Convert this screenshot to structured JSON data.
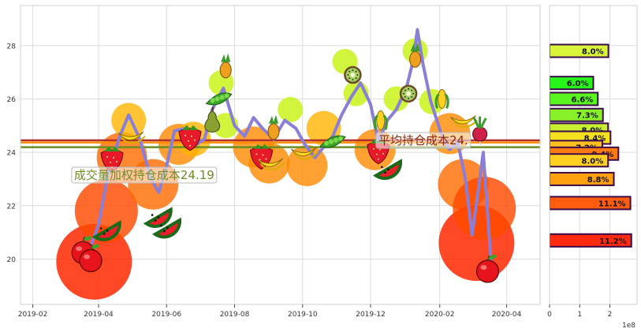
{
  "chart_data": [
    {
      "type": "line",
      "title": "",
      "xlabel": "",
      "ylabel": "",
      "xlim": [
        "2019-01-21",
        "2020-05-01"
      ],
      "ylim": [
        18.3,
        29.5
      ],
      "x_ticks": [
        "2019-02",
        "2019-04",
        "2019-06",
        "2019-08",
        "2019-10",
        "2019-12",
        "2020-02",
        "2020-04"
      ],
      "y_ticks": [
        20,
        22,
        24,
        26,
        28
      ],
      "grid": true,
      "series": [
        {
          "type": "line",
          "color": "#8a7fd6",
          "points": [
            [
              "2019-03-20",
              19.9
            ],
            [
              "2019-04-01",
              21.3
            ],
            [
              "2019-04-10",
              23.3
            ],
            [
              "2019-04-20",
              24.6
            ],
            [
              "2019-04-28",
              25.4
            ],
            [
              "2019-05-08",
              24.5
            ],
            [
              "2019-05-18",
              23.0
            ],
            [
              "2019-05-25",
              22.5
            ],
            [
              "2019-06-01",
              23.5
            ],
            [
              "2019-06-08",
              24.8
            ],
            [
              "2019-06-18",
              24.9
            ],
            [
              "2019-06-28",
              24.3
            ],
            [
              "2019-07-05",
              24.5
            ],
            [
              "2019-07-12",
              25.6
            ],
            [
              "2019-07-22",
              26.4
            ],
            [
              "2019-08-01",
              25.0
            ],
            [
              "2019-08-10",
              24.6
            ],
            [
              "2019-08-18",
              25.3
            ],
            [
              "2019-08-26",
              24.9
            ],
            [
              "2019-09-05",
              24.5
            ],
            [
              "2019-09-15",
              25.2
            ],
            [
              "2019-09-25",
              24.9
            ],
            [
              "2019-10-03",
              24.3
            ],
            [
              "2019-10-12",
              23.8
            ],
            [
              "2019-10-20",
              24.2
            ],
            [
              "2019-10-28",
              24.6
            ],
            [
              "2019-11-05",
              25.4
            ],
            [
              "2019-11-14",
              26.1
            ],
            [
              "2019-11-22",
              26.6
            ],
            [
              "2019-12-01",
              25.8
            ],
            [
              "2019-12-08",
              24.4
            ],
            [
              "2019-12-16",
              25.2
            ],
            [
              "2019-12-24",
              25.6
            ],
            [
              "2020-01-02",
              26.4
            ],
            [
              "2020-01-08",
              27.4
            ],
            [
              "2020-01-12",
              28.6
            ],
            [
              "2020-01-17",
              27.3
            ],
            [
              "2020-01-24",
              25.9
            ],
            [
              "2020-02-03",
              24.6
            ],
            [
              "2020-02-10",
              24.1
            ],
            [
              "2020-02-17",
              24.4
            ],
            [
              "2020-02-24",
              23.0
            ],
            [
              "2020-03-01",
              20.9
            ],
            [
              "2020-03-06",
              22.4
            ],
            [
              "2020-03-11",
              24.0
            ],
            [
              "2020-03-18",
              19.9
            ]
          ]
        }
      ],
      "horizontal_lines": [
        {
          "y": 24.45,
          "color": "#b03030"
        },
        {
          "y": 24.37,
          "color": "#ff8c00"
        },
        {
          "y": 24.19,
          "color": "#6b8e23"
        }
      ],
      "annotations": [
        {
          "text": "平均持仓成本24.",
          "x": "2019-12-08",
          "y": 24.3,
          "color": "#8b2a0a"
        },
        {
          "text": "成交量加权持仓成本24.19",
          "x": "2019-03-10",
          "y": 23.0,
          "color": "#6b8e23"
        }
      ],
      "bubbles": [
        {
          "x": "2019-03-28",
          "y": 19.9,
          "level": 5
        },
        {
          "x": "2019-04-08",
          "y": 21.8,
          "level": 4
        },
        {
          "x": "2019-04-22",
          "y": 23.8,
          "level": 3
        },
        {
          "x": "2019-04-28",
          "y": 25.2,
          "level": 1
        },
        {
          "x": "2019-05-20",
          "y": 22.8,
          "level": 3
        },
        {
          "x": "2019-06-12",
          "y": 24.3,
          "level": 2
        },
        {
          "x": "2019-06-25",
          "y": 24.5,
          "level": 1
        },
        {
          "x": "2019-07-20",
          "y": 26.6,
          "level": 0
        },
        {
          "x": "2019-07-24",
          "y": 25.0,
          "level": 0
        },
        {
          "x": "2019-08-18",
          "y": 24.2,
          "level": 2
        },
        {
          "x": "2019-09-01",
          "y": 23.6,
          "level": 2
        },
        {
          "x": "2019-09-20",
          "y": 25.6,
          "level": 0
        },
        {
          "x": "2019-10-05",
          "y": 23.5,
          "level": 2
        },
        {
          "x": "2019-10-20",
          "y": 24.9,
          "level": 1
        },
        {
          "x": "2019-11-08",
          "y": 27.4,
          "level": 0
        },
        {
          "x": "2019-11-18",
          "y": 26.2,
          "level": 0
        },
        {
          "x": "2019-12-05",
          "y": 24.1,
          "level": 2
        },
        {
          "x": "2019-12-24",
          "y": 26.0,
          "level": 0
        },
        {
          "x": "2020-01-10",
          "y": 27.8,
          "level": 0
        },
        {
          "x": "2020-01-25",
          "y": 25.9,
          "level": 0
        },
        {
          "x": "2020-02-10",
          "y": 24.7,
          "level": 2
        },
        {
          "x": "2020-02-22",
          "y": 22.8,
          "level": 3
        },
        {
          "x": "2020-03-05",
          "y": 20.6,
          "level": 5
        },
        {
          "x": "2020-03-12",
          "y": 21.9,
          "level": 4
        }
      ],
      "stickers": [
        {
          "kind": "apple",
          "x": "2019-03-18",
          "y": 20.3
        },
        {
          "kind": "apple",
          "x": "2019-03-25",
          "y": 20.0
        },
        {
          "kind": "watermelon",
          "x": "2019-04-06",
          "y": 21.3
        },
        {
          "kind": "strawberry",
          "x": "2019-04-13",
          "y": 23.8
        },
        {
          "kind": "banana",
          "x": "2019-04-30",
          "y": 24.6
        },
        {
          "kind": "watermelon",
          "x": "2019-05-22",
          "y": 21.8
        },
        {
          "kind": "watermelon",
          "x": "2019-05-30",
          "y": 21.4
        },
        {
          "kind": "strawberry",
          "x": "2019-06-22",
          "y": 24.6
        },
        {
          "kind": "pear",
          "x": "2019-07-12",
          "y": 25.2
        },
        {
          "kind": "peapod",
          "x": "2019-07-18",
          "y": 26.0
        },
        {
          "kind": "pineapple",
          "x": "2019-07-24",
          "y": 27.2
        },
        {
          "kind": "strawberry",
          "x": "2019-08-25",
          "y": 23.9
        },
        {
          "kind": "banana",
          "x": "2019-09-02",
          "y": 23.6
        },
        {
          "kind": "pineapple",
          "x": "2019-09-05",
          "y": 24.9
        },
        {
          "kind": "banana",
          "x": "2019-10-02",
          "y": 24.0
        },
        {
          "kind": "peapod",
          "x": "2019-10-28",
          "y": 24.4
        },
        {
          "kind": "kiwi",
          "x": "2019-11-15",
          "y": 26.9
        },
        {
          "kind": "watermelon",
          "x": "2019-12-14",
          "y": 23.6
        },
        {
          "kind": "strawberry",
          "x": "2019-12-08",
          "y": 24.1
        },
        {
          "kind": "corn",
          "x": "2019-12-10",
          "y": 25.2
        },
        {
          "kind": "kiwi",
          "x": "2020-01-04",
          "y": 26.2
        },
        {
          "kind": "pineapple",
          "x": "2020-01-10",
          "y": 27.6
        },
        {
          "kind": "corn",
          "x": "2020-02-03",
          "y": 26.0
        },
        {
          "kind": "banana",
          "x": "2020-02-22",
          "y": 25.2
        },
        {
          "kind": "radish",
          "x": "2020-03-08",
          "y": 24.8
        },
        {
          "kind": "apple",
          "x": "2020-03-15",
          "y": 19.6
        }
      ]
    },
    {
      "type": "bar",
      "orientation": "horizontal",
      "xlabel": "",
      "ylabel": "",
      "x_ticks": [
        "0",
        "1",
        "2"
      ],
      "x_scale_label": "1e8",
      "xlim": [
        0,
        2.9
      ],
      "bars": [
        {
          "price": 27.8,
          "volume": 1.95,
          "label": "8.0%",
          "color": "#d8f53a"
        },
        {
          "price": 26.6,
          "volume": 1.45,
          "label": "6.0%",
          "color": "#27f51a"
        },
        {
          "price": 26.0,
          "volume": 1.6,
          "label": "6.6%",
          "color": "#5af520"
        },
        {
          "price": 25.4,
          "volume": 1.77,
          "label": "7.3%",
          "color": "#88f028"
        },
        {
          "price": 24.85,
          "volume": 1.94,
          "label": "8.0%",
          "color": "#c6f030"
        },
        {
          "price": 24.55,
          "volume": 2.02,
          "label": "8.4%",
          "color": "#f5e020"
        },
        {
          "price": 24.2,
          "volume": 1.75,
          "label": "7.2%",
          "color": "#ffc020"
        },
        {
          "price": 23.95,
          "volume": 2.28,
          "label": "9.4%",
          "color": "#ff7a10"
        },
        {
          "price": 23.7,
          "volume": 1.94,
          "label": "8.0%",
          "color": "#ffd020"
        },
        {
          "price": 23.0,
          "volume": 2.13,
          "label": "8.8%",
          "color": "#ffa010"
        },
        {
          "price": 22.1,
          "volume": 2.68,
          "label": "11.1%",
          "color": "#ff5c10"
        },
        {
          "price": 20.7,
          "volume": 2.71,
          "label": "11.2%",
          "color": "#ff2a10"
        }
      ]
    }
  ]
}
